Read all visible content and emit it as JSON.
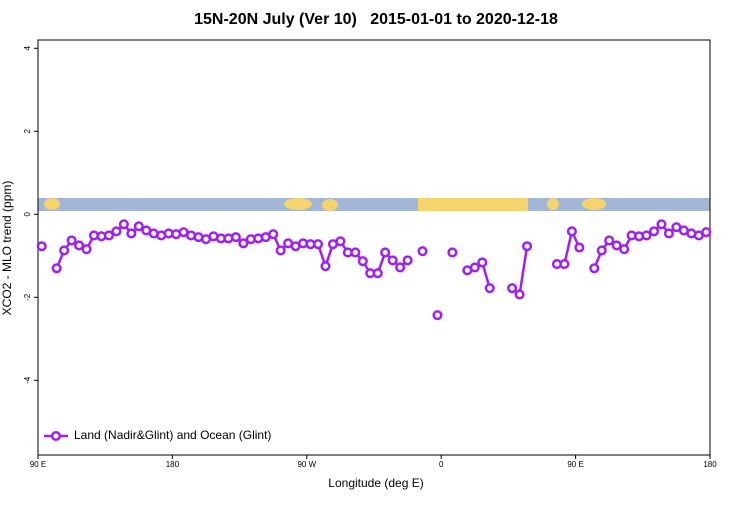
{
  "chart_data": {
    "type": "line",
    "title": "15N-20N July (Ver 10)   2015-01-01 to 2020-12-18",
    "x_label": "Longitude (deg E)",
    "y_label": "XCO2 - MLO trend (ppm)",
    "xlim": [
      90,
      540
    ],
    "xticks": [
      {
        "value": 90,
        "label": "90 E"
      },
      180,
      {
        "value": 270,
        "label": "90 W"
      },
      {
        "value": 360,
        "label": "0"
      },
      {
        "value": 450,
        "label": "90 E"
      },
      {
        "value": 540,
        "label": "180"
      }
    ],
    "ylim": [
      -5.8,
      4.2
    ],
    "yticks": [
      -4,
      -2,
      0,
      2,
      4
    ],
    "legend": "bottom-left",
    "x": [
      92.5,
      97.5,
      102.5,
      107.5,
      112.5,
      117.5,
      122.5,
      127.5,
      132.5,
      137.5,
      142.5,
      147.5,
      152.5,
      157.5,
      162.5,
      167.5,
      172.5,
      177.5,
      182.5,
      187.5,
      192.5,
      197.5,
      202.5,
      207.5,
      212.5,
      217.5,
      222.5,
      227.5,
      232.5,
      237.5,
      242.5,
      247.5,
      252.5,
      257.5,
      262.5,
      267.5,
      272.5,
      277.5,
      282.5,
      287.5,
      292.5,
      297.5,
      302.5,
      307.5,
      312.5,
      317.5,
      322.5,
      327.5,
      332.5,
      337.5,
      342.5,
      347.5,
      352.5,
      357.5,
      362.5,
      367.5,
      372.5,
      377.5,
      382.5,
      387.5,
      392.5,
      397.5,
      402.5,
      407.5,
      412.5,
      417.5,
      422.5,
      427.5,
      432.5,
      437.5,
      442.5,
      447.5,
      452.5,
      457.5,
      462.5,
      467.5,
      472.5,
      477.5,
      482.5,
      487.5,
      492.5,
      497.5,
      502.5,
      507.5,
      512.5,
      517.5,
      522.5,
      527.5,
      532.5,
      537.5
    ],
    "series": [
      {
        "name": "Land (Nadir&Glint) and Ocean (Glint)",
        "color": "#a020f0",
        "values": [
          -0.77,
          null,
          -1.3,
          -0.87,
          -0.63,
          -0.75,
          -0.84,
          -0.51,
          -0.53,
          -0.51,
          -0.41,
          -0.24,
          -0.46,
          -0.29,
          -0.39,
          -0.46,
          -0.51,
          -0.46,
          -0.48,
          -0.43,
          -0.51,
          -0.55,
          -0.6,
          -0.53,
          -0.58,
          -0.58,
          -0.55,
          -0.7,
          -0.6,
          -0.58,
          -0.55,
          -0.48,
          -0.87,
          -0.7,
          -0.77,
          -0.7,
          -0.72,
          -0.72,
          -1.25,
          -0.72,
          -0.65,
          -0.92,
          -0.92,
          -1.13,
          -1.42,
          -1.42,
          -0.92,
          -1.11,
          -1.28,
          -1.11,
          null,
          -0.89,
          null,
          -2.43,
          null,
          -0.92,
          null,
          -1.35,
          -1.28,
          -1.16,
          -1.78,
          null,
          null,
          -1.78,
          -1.93,
          -0.77,
          null,
          null,
          null,
          -1.2,
          -1.2,
          -0.41,
          -0.8,
          null,
          -1.3,
          -0.87,
          -0.63,
          -0.75,
          -0.84,
          -0.51,
          -0.53,
          -0.51,
          -0.41,
          -0.24,
          -0.46,
          -0.31,
          -0.39,
          -0.46,
          -0.51,
          -0.43
        ]
      }
    ]
  }
}
